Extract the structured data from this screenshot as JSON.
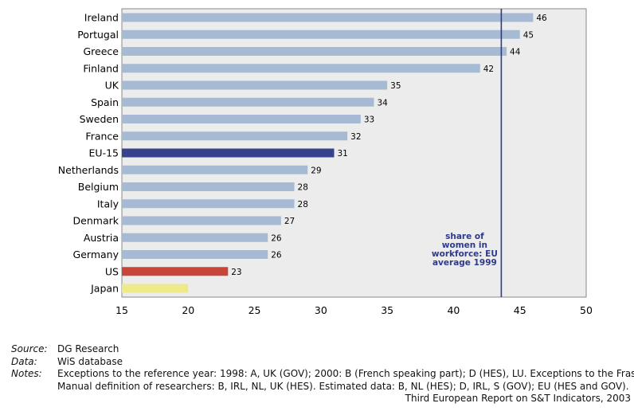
{
  "chart_data": {
    "type": "bar",
    "orientation": "horizontal",
    "categories": [
      "Ireland",
      "Portugal",
      "Greece",
      "Finland",
      "UK",
      "Spain",
      "Sweden",
      "France",
      "EU-15",
      "Netherlands",
      "Belgium",
      "Italy",
      "Denmark",
      "Austria",
      "Germany",
      "US",
      "Japan"
    ],
    "values": [
      46,
      45,
      44,
      42,
      35,
      34,
      33,
      32,
      31,
      29,
      28,
      28,
      27,
      26,
      26,
      23,
      20
    ],
    "value_labels": [
      "46",
      "45",
      "44",
      "42",
      "35",
      "34",
      "33",
      "32",
      "31",
      "29",
      "28",
      "28",
      "27",
      "26",
      "26",
      "23",
      ""
    ],
    "xlim": [
      15,
      50
    ],
    "xticks": [
      "15",
      "20",
      "25",
      "30",
      "35",
      "40",
      "45",
      "50"
    ],
    "reference_line": {
      "value": 43.6,
      "label_lines": [
        "share of",
        "women in",
        "workforce: EU",
        "average 1999"
      ]
    },
    "grid": false,
    "colors": {
      "default_bar": "#a6bad3",
      "highlight_eu": "#36428c",
      "highlight_us": "#c8453a",
      "highlight_japan": "#eeea8a",
      "plot_background": "#ececec",
      "reference_line": "#2e3a8c"
    },
    "bar_colors": [
      "default_bar",
      "default_bar",
      "default_bar",
      "default_bar",
      "default_bar",
      "default_bar",
      "default_bar",
      "default_bar",
      "highlight_eu",
      "default_bar",
      "default_bar",
      "default_bar",
      "default_bar",
      "default_bar",
      "default_bar",
      "highlight_us",
      "highlight_japan"
    ]
  },
  "footer": {
    "source_key": "Source:",
    "source_val": "DG Research",
    "data_key": "Data:",
    "data_val": "WiS database",
    "notes_key": "Notes:",
    "notes_line1": "Exceptions to the reference year: 1998: A, UK (GOV); 2000: B (French speaking part); D (HES), LU. Exceptions to the Frascati",
    "notes_line2": "Manual definition of researchers: B, IRL, NL, UK (HES). Estimated data: B, NL (HES); D, IRL, S (GOV); EU (HES and GOV).",
    "credit": "Third European Report on S&T Indicators, 2003"
  }
}
